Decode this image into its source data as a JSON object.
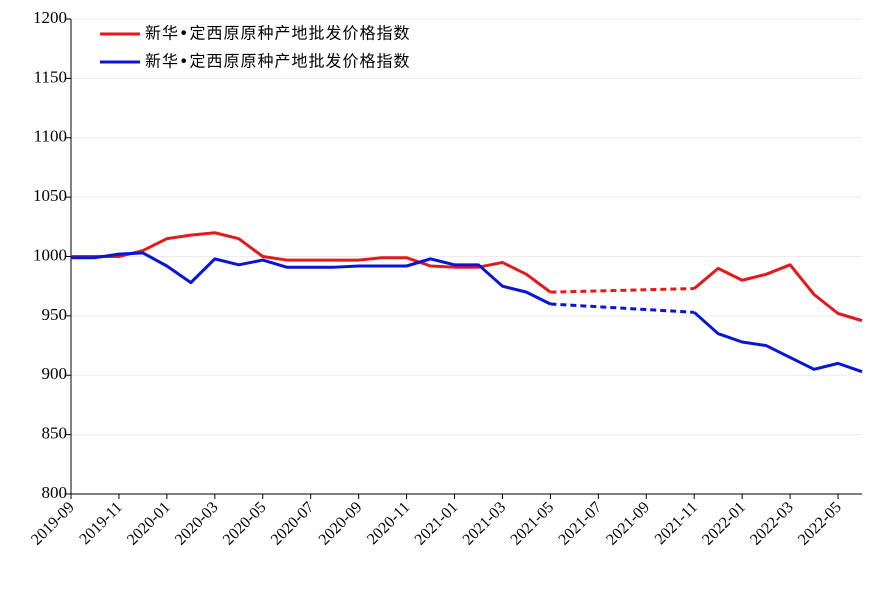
{
  "chart_data": {
    "type": "line",
    "x": [
      "2019-09",
      "2019-10",
      "2019-11",
      "2019-12",
      "2020-01",
      "2020-02",
      "2020-03",
      "2020-04",
      "2020-05",
      "2020-06",
      "2020-07",
      "2020-08",
      "2020-09",
      "2020-10",
      "2020-11",
      "2020-12",
      "2021-01",
      "2021-02",
      "2021-03",
      "2021-04",
      "2021-05",
      "2021-06",
      "2021-07",
      "2021-08",
      "2021-09",
      "2021-10",
      "2021-11",
      "2021-12",
      "2022-01",
      "2022-02",
      "2022-03",
      "2022-04",
      "2022-05",
      "2022-06"
    ],
    "series": [
      {
        "name": "新华•定西原原种产地批发价格指数",
        "color": "#e31a1c",
        "values": [
          1000,
          1000,
          1000,
          1005,
          1015,
          1018,
          1020,
          1015,
          1000,
          997,
          997,
          997,
          997,
          999,
          999,
          992,
          991,
          991,
          995,
          985,
          970,
          null,
          null,
          null,
          null,
          null,
          973,
          990,
          980,
          985,
          993,
          968,
          952,
          946
        ]
      },
      {
        "name": "新华•定西原原种产地批发价格指数",
        "color": "#0a14d6",
        "values": [
          999,
          999,
          1002,
          1003,
          992,
          978,
          998,
          993,
          997,
          991,
          991,
          991,
          992,
          992,
          992,
          998,
          993,
          993,
          975,
          970,
          960,
          null,
          null,
          null,
          null,
          null,
          953,
          935,
          928,
          925,
          915,
          905,
          910,
          903
        ]
      }
    ],
    "xlim": [
      "2019-09",
      "2022-06"
    ],
    "xticks": [
      "2019-09",
      "2019-11",
      "2020-01",
      "2020-03",
      "2020-05",
      "2020-07",
      "2020-09",
      "2020-11",
      "2021-01",
      "2021-03",
      "2021-05",
      "2021-07",
      "2021-09",
      "2021-11",
      "2022-01",
      "2022-03",
      "2022-05"
    ],
    "ylim": [
      800,
      1200
    ],
    "yticks": [
      800,
      850,
      900,
      950,
      1000,
      1050,
      1100,
      1150,
      1200
    ],
    "grid": true,
    "legend": "upper-left",
    "gap_style": "dashed"
  }
}
